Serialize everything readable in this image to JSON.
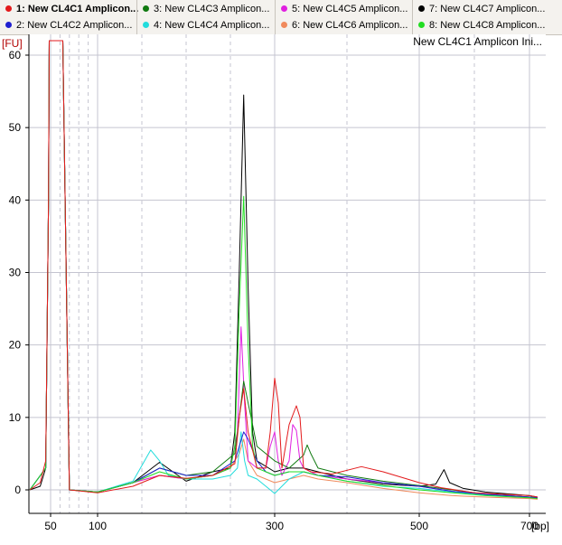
{
  "legend": {
    "items": [
      {
        "label": "1: New CL4C1 Amplicon...",
        "color": "#e31a1c",
        "bold": true
      },
      {
        "label": "2: New CL4C2 Amplicon...",
        "color": "#1f1fd0",
        "bold": false
      },
      {
        "label": "3: New CL4C3 Amplicon...",
        "color": "#117a11",
        "bold": false
      },
      {
        "label": "4: New CL4C4 Amplicon...",
        "color": "#22dcdc",
        "bold": false
      },
      {
        "label": "5: New CL4C5 Amplicon...",
        "color": "#e020e0",
        "bold": false
      },
      {
        "label": "6: New CL4C6 Amplicon...",
        "color": "#f08a5c",
        "bold": false
      },
      {
        "label": "7: New CL4C7 Amplicon...",
        "color": "#000000",
        "bold": false
      },
      {
        "label": "8: New CL4C8 Amplicon...",
        "color": "#22dd22",
        "bold": false
      }
    ]
  },
  "chart_data": {
    "type": "line",
    "title": "New CL4C1 Amplicon Ini...",
    "ylabel": "[FU]",
    "xlabel": "[bp]",
    "x_ticks": [
      50,
      100,
      300,
      500,
      "700"
    ],
    "y_ticks": [
      0,
      10,
      20,
      30,
      40,
      50,
      60
    ],
    "ylim": [
      -3,
      61
    ],
    "grid": true,
    "x_scale": "electropherogram (non-linear bp)",
    "series": [
      {
        "name": "1: New CL4C1 Amplicon...",
        "color": "#e31a1c",
        "x": [
          20,
          35,
          43,
          47,
          48,
          50,
          54,
          59,
          63,
          70,
          100,
          140,
          170,
          200,
          230,
          255,
          260,
          265,
          270,
          280,
          290,
          295,
          300,
          305,
          310,
          320,
          330,
          335,
          340,
          350,
          380,
          420,
          450,
          500,
          540,
          600,
          700,
          720
        ],
        "y": [
          0,
          1,
          4,
          40,
          62,
          62,
          62,
          62,
          62,
          0,
          -0.4,
          0.5,
          2,
          1.6,
          2,
          3.6,
          10,
          14,
          8,
          3,
          3,
          8,
          15.4,
          12,
          3,
          9,
          11.6,
          10,
          3,
          2.5,
          2.2,
          3.2,
          2.5,
          1,
          0.3,
          -0.4,
          -0.8,
          -1
        ]
      },
      {
        "name": "2: New CL4C2 Amplicon...",
        "color": "#1f1fd0",
        "x": [
          20,
          43,
          47,
          48,
          50,
          54,
          59,
          63,
          70,
          100,
          140,
          170,
          200,
          230,
          255,
          260,
          265,
          270,
          280,
          290,
          300,
          320,
          340,
          360,
          400,
          450,
          500,
          560,
          620,
          700,
          720
        ],
        "y": [
          0,
          3,
          40,
          62,
          62,
          62,
          62,
          62,
          0,
          -0.3,
          1,
          3,
          2,
          2,
          4,
          6,
          8,
          7,
          4,
          2.5,
          2,
          2.5,
          2.5,
          2,
          1.8,
          1,
          0.5,
          -0.2,
          -0.6,
          -1,
          -1.1
        ]
      },
      {
        "name": "3: New CL4C3 Amplicon...",
        "color": "#117a11",
        "x": [
          20,
          43,
          47,
          48,
          50,
          54,
          59,
          63,
          70,
          100,
          140,
          170,
          200,
          230,
          255,
          260,
          265,
          270,
          280,
          300,
          320,
          340,
          345,
          350,
          360,
          400,
          450,
          500,
          560,
          620,
          700,
          720
        ],
        "y": [
          0,
          3,
          40,
          62,
          62,
          62,
          62,
          62,
          0,
          -0.3,
          1,
          3,
          2,
          2.5,
          5,
          10,
          15,
          12,
          6,
          4,
          3,
          4.8,
          6.2,
          5,
          3,
          2,
          1.2,
          0.6,
          0,
          -0.6,
          -1,
          -1.1
        ]
      },
      {
        "name": "4: New CL4C4 Amplicon...",
        "color": "#22dcdc",
        "x": [
          20,
          43,
          47,
          48,
          50,
          54,
          59,
          63,
          70,
          100,
          140,
          160,
          170,
          180,
          200,
          230,
          250,
          258,
          262,
          266,
          270,
          280,
          300,
          320,
          340,
          360,
          400,
          450,
          500,
          560,
          620,
          700,
          720
        ],
        "y": [
          0,
          3,
          40,
          62,
          62,
          62,
          62,
          62,
          0,
          -0.3,
          1.2,
          5.5,
          4,
          2,
          1.5,
          1.5,
          2,
          3,
          8,
          4,
          2,
          1.5,
          -0.5,
          1.5,
          2.5,
          2,
          1.2,
          0.5,
          0.2,
          -0.3,
          -0.7,
          -1,
          -1.1
        ]
      },
      {
        "name": "5: New CL4C5 Amplicon...",
        "color": "#e020e0",
        "x": [
          20,
          43,
          47,
          48,
          50,
          54,
          59,
          63,
          70,
          100,
          140,
          170,
          200,
          230,
          250,
          258,
          262,
          266,
          270,
          280,
          290,
          295,
          300,
          305,
          310,
          320,
          325,
          330,
          335,
          340,
          360,
          400,
          450,
          500,
          560,
          620,
          700,
          720
        ],
        "y": [
          0,
          3,
          40,
          62,
          62,
          62,
          62,
          62,
          0,
          -0.3,
          1,
          2,
          1.5,
          2,
          3,
          8,
          22.5,
          12,
          4,
          3,
          3,
          6,
          8,
          4,
          2,
          4,
          9,
          8.2,
          4,
          3,
          2,
          1.5,
          1,
          0.5,
          -0.2,
          -0.6,
          -1,
          -1.1
        ]
      },
      {
        "name": "6: New CL4C6 Amplicon...",
        "color": "#f08a5c",
        "x": [
          20,
          43,
          47,
          48,
          50,
          54,
          59,
          63,
          70,
          100,
          140,
          170,
          200,
          230,
          250,
          260,
          265,
          270,
          280,
          300,
          320,
          340,
          360,
          400,
          450,
          500,
          560,
          620,
          700,
          720
        ],
        "y": [
          0,
          3,
          40,
          62,
          62,
          62,
          62,
          62,
          0,
          -0.3,
          1,
          2,
          1.5,
          2,
          3,
          5,
          7,
          4,
          2,
          1,
          1.5,
          2,
          1.5,
          1,
          0.2,
          -0.4,
          -0.8,
          -1,
          -1.2,
          -1.3
        ]
      },
      {
        "name": "7: New CL4C7 Amplicon...",
        "color": "#000000",
        "x": [
          20,
          35,
          43,
          47,
          48,
          50,
          54,
          59,
          63,
          70,
          100,
          140,
          170,
          200,
          230,
          250,
          255,
          260,
          265,
          270,
          275,
          280,
          300,
          320,
          340,
          360,
          400,
          450,
          500,
          530,
          545,
          555,
          580,
          620,
          700,
          720
        ],
        "y": [
          0,
          0.5,
          3,
          40,
          62,
          62,
          62,
          62,
          62,
          0,
          -0.3,
          1,
          3.8,
          1.2,
          2.5,
          3,
          8,
          30,
          54.5,
          28,
          8,
          4,
          2.5,
          3,
          3,
          2.5,
          1.5,
          0.8,
          0.5,
          0.8,
          2.8,
          1,
          0.2,
          -0.3,
          -0.8,
          -1
        ]
      },
      {
        "name": "8: New CL4C8 Amplicon...",
        "color": "#22dd22",
        "x": [
          20,
          43,
          47,
          48,
          50,
          54,
          59,
          63,
          70,
          100,
          140,
          170,
          200,
          230,
          250,
          255,
          260,
          265,
          270,
          275,
          280,
          300,
          320,
          340,
          360,
          400,
          450,
          500,
          560,
          620,
          700,
          720
        ],
        "y": [
          0,
          3,
          40,
          62,
          62,
          62,
          62,
          62,
          0,
          -0.3,
          1,
          2.5,
          1.5,
          2,
          3,
          6,
          25,
          40.5,
          20,
          6,
          3,
          2,
          2.5,
          2.5,
          2,
          1.2,
          0.6,
          0,
          -0.4,
          -0.8,
          -1.1,
          -1.2
        ]
      }
    ]
  }
}
